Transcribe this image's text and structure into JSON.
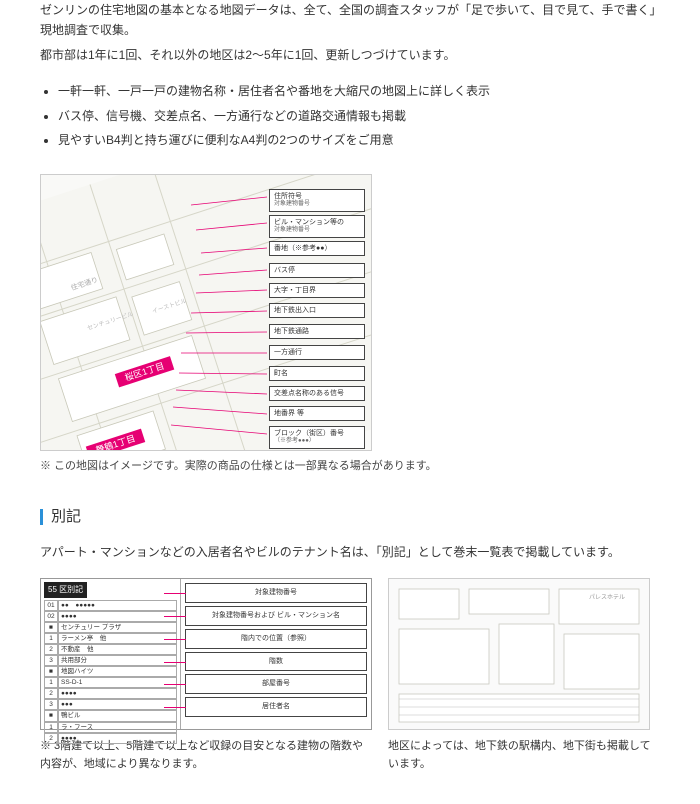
{
  "intro": {
    "p1": "ゼンリンの住宅地図の基本となる地図データは、全て、全国の調査スタッフが「足で歩いて、目で見て、手で書く」現地調査で収集。",
    "p2": "都市部は1年に1回、それ以外の地区は2〜5年に1回、更新しつづけています。"
  },
  "features": [
    "一軒一軒、一戸一戸の建物名称・居住者名や番地を大縮尺の地図上に詳しく表示",
    "バス停、信号機、交差点名、一方通行などの道路交通情報も掲載",
    "見やすいB4判と持ち運びに便利なA4判の2つのサイズをご用意"
  ],
  "callouts": [
    "住所符号\\n対象建物番号",
    "ビル・マンション等の\\n対象建物番号",
    "番地（※参考●●）",
    "バス停",
    "大字・丁目界",
    "地下鉄出入口",
    "地下鉄通路",
    "一方通行",
    "町名",
    "交差点名称のある信号",
    "地番界 等",
    "ブロック（街区）番号\\n（※参考●●●）"
  ],
  "map_note": "※ この地図はイメージです。実際の商品の仕様とは一部異なる場合があります。",
  "section_title": "別記",
  "bekki_intro": "アパート・マンションなどの入居者名やビルのテナント名は、「別記」として巻末一覧表で掲載しています。",
  "bekki_header": "55 区別記",
  "bekki_building1": "センチュリー\\nプラザ",
  "bekki_building2": "地図ハイツ",
  "bekki_building3": "鴨ビル",
  "bekki_labels": [
    "対象建物番号",
    "対象建物番号および\\nビル・マンション名",
    "階内での位置（参照）",
    "階数",
    "部屋番号",
    "居住者名"
  ],
  "caption_left": "※ 3階建て以上、5階建て以上など収録の目安となる建物の階数や内容が、地域により異なります。",
  "caption_right": "地区によっては、地下鉄の駅構内、地下街も掲載しています。",
  "colors": {
    "accent": "#2a90d8",
    "line": "#e60073"
  }
}
